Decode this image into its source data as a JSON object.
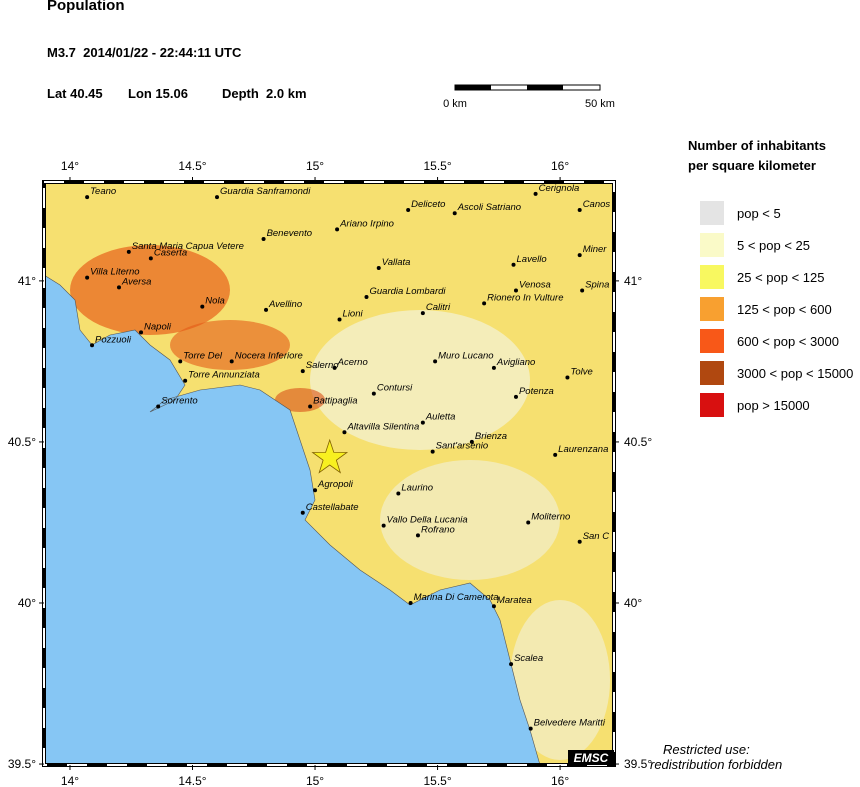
{
  "header": {
    "title": "Population",
    "event": "M3.7  2014/01/22 - 22:44:11 UTC",
    "lat": "Lat 40.45",
    "lon": "Lon 15.06",
    "depth": "Depth  2.0 km"
  },
  "scale_bar": {
    "start": "0 km",
    "end": "50 km"
  },
  "map": {
    "lonlim": [
      13.894,
      16.22
    ],
    "latlim": [
      39.497,
      41.307
    ],
    "lonticks": [
      {
        "value": 14,
        "label": "14°"
      },
      {
        "value": 14.5,
        "label": "14.5°"
      },
      {
        "value": 15,
        "label": "15°"
      },
      {
        "value": 15.5,
        "label": "15.5°"
      },
      {
        "value": 16,
        "label": "16°"
      }
    ],
    "latticks": [
      {
        "value": 41,
        "label": "41°"
      },
      {
        "value": 40.5,
        "label": "40.5°"
      },
      {
        "value": 40,
        "label": "40°"
      },
      {
        "value": 39.5,
        "label": "39.5°"
      }
    ],
    "epicenter": {
      "lon": 15.06,
      "lat": 40.45
    },
    "badge": "EMSC",
    "cities": [
      {
        "name": "Teano",
        "lon": 14.07,
        "lat": 41.26
      },
      {
        "name": "Guardia Sanframondi",
        "lon": 14.6,
        "lat": 41.26
      },
      {
        "name": "Cerignola",
        "lon": 15.9,
        "lat": 41.27
      },
      {
        "name": "Canos",
        "lon": 16.08,
        "lat": 41.22
      },
      {
        "name": "Deliceto",
        "lon": 15.38,
        "lat": 41.22
      },
      {
        "name": "Ascoli Satriano",
        "lon": 15.57,
        "lat": 41.21
      },
      {
        "name": "Ariano Irpino",
        "lon": 15.09,
        "lat": 41.16
      },
      {
        "name": "Benevento",
        "lon": 14.79,
        "lat": 41.13
      },
      {
        "name": "Santa Maria Capua Vetere",
        "lon": 14.24,
        "lat": 41.09
      },
      {
        "name": "Caserta",
        "lon": 14.33,
        "lat": 41.07
      },
      {
        "name": "Miner",
        "lon": 16.08,
        "lat": 41.08
      },
      {
        "name": "Lavello",
        "lon": 15.81,
        "lat": 41.05
      },
      {
        "name": "Vallata",
        "lon": 15.26,
        "lat": 41.04
      },
      {
        "name": "Villa Literno",
        "lon": 14.07,
        "lat": 41.01
      },
      {
        "name": "Aversa",
        "lon": 14.2,
        "lat": 40.98
      },
      {
        "name": "Venosa",
        "lon": 15.82,
        "lat": 40.97
      },
      {
        "name": "Spina",
        "lon": 16.09,
        "lat": 40.97
      },
      {
        "name": "Guardia Lombardi",
        "lon": 15.21,
        "lat": 40.95
      },
      {
        "name": "Rionero In Vulture",
        "lon": 15.69,
        "lat": 40.93
      },
      {
        "name": "Nola",
        "lon": 14.54,
        "lat": 40.92
      },
      {
        "name": "Avellino",
        "lon": 14.8,
        "lat": 40.91
      },
      {
        "name": "Calitri",
        "lon": 15.44,
        "lat": 40.9
      },
      {
        "name": "Lioni",
        "lon": 15.1,
        "lat": 40.88
      },
      {
        "name": "Napoli",
        "lon": 14.29,
        "lat": 40.84
      },
      {
        "name": "Pozzuoli",
        "lon": 14.09,
        "lat": 40.8
      },
      {
        "name": "Torre Del",
        "lon": 14.45,
        "lat": 40.75
      },
      {
        "name": "Nocera Inferiore",
        "lon": 14.66,
        "lat": 40.75
      },
      {
        "name": "Muro Lucano",
        "lon": 15.49,
        "lat": 40.75
      },
      {
        "name": "Salerno",
        "lon": 14.95,
        "lat": 40.72
      },
      {
        "name": "Acerno",
        "lon": 15.08,
        "lat": 40.73
      },
      {
        "name": "Avigliano",
        "lon": 15.73,
        "lat": 40.73
      },
      {
        "name": "Torre Annunziata",
        "lon": 14.47,
        "lat": 40.69
      },
      {
        "name": "Tolve",
        "lon": 16.03,
        "lat": 40.7
      },
      {
        "name": "Contursi",
        "lon": 15.24,
        "lat": 40.65
      },
      {
        "name": "Potenza",
        "lon": 15.82,
        "lat": 40.64
      },
      {
        "name": "Sorrento",
        "lon": 14.36,
        "lat": 40.61
      },
      {
        "name": "Battipaglia",
        "lon": 14.98,
        "lat": 40.61
      },
      {
        "name": "Auletta",
        "lon": 15.44,
        "lat": 40.56
      },
      {
        "name": "Altavilla Silentina",
        "lon": 15.12,
        "lat": 40.53
      },
      {
        "name": "Brienza",
        "lon": 15.64,
        "lat": 40.5
      },
      {
        "name": "Sant'arsenio",
        "lon": 15.48,
        "lat": 40.47
      },
      {
        "name": "Laurenzana",
        "lon": 15.98,
        "lat": 40.46
      },
      {
        "name": "Agropoli",
        "lon": 15.0,
        "lat": 40.35
      },
      {
        "name": "Laurino",
        "lon": 15.34,
        "lat": 40.34
      },
      {
        "name": "Castellabate",
        "lon": 14.95,
        "lat": 40.28
      },
      {
        "name": "Vallo Della Lucania",
        "lon": 15.28,
        "lat": 40.24
      },
      {
        "name": "Rofrano",
        "lon": 15.42,
        "lat": 40.21
      },
      {
        "name": "Moliterno",
        "lon": 15.87,
        "lat": 40.25
      },
      {
        "name": "San C",
        "lon": 16.08,
        "lat": 40.19
      },
      {
        "name": "Marina Di Camerota",
        "lon": 15.39,
        "lat": 40.0
      },
      {
        "name": "Maratea",
        "lon": 15.73,
        "lat": 39.99
      },
      {
        "name": "Scalea",
        "lon": 15.8,
        "lat": 39.81
      },
      {
        "name": "Belvedere Maritti",
        "lon": 15.88,
        "lat": 39.61
      }
    ]
  },
  "legend": {
    "title_lines": [
      "Number of inhabitants",
      "per square kilometer"
    ],
    "items": [
      {
        "label": "pop < 5",
        "color": "#e4e4e4"
      },
      {
        "label": "5 < pop < 25",
        "color": "#fafac8"
      },
      {
        "label": "25 < pop < 125",
        "color": "#f8f860"
      },
      {
        "label": "125 < pop < 600",
        "color": "#f8a030"
      },
      {
        "label": "600 < pop < 3000",
        "color": "#f85818"
      },
      {
        "label": "3000 < pop < 15000",
        "color": "#b04810"
      },
      {
        "label": "pop > 15000",
        "color": "#d81010"
      }
    ]
  },
  "notice": [
    "Restricted use:",
    "redistribution forbidden"
  ]
}
